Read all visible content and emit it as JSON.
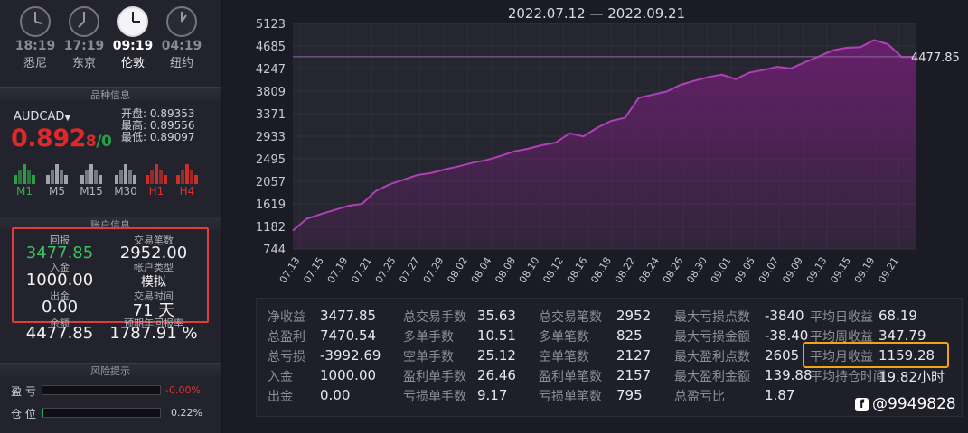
{
  "clocks": [
    {
      "time": "18:19",
      "city": "悉尼"
    },
    {
      "time": "17:19",
      "city": "东京"
    },
    {
      "time": "09:19",
      "city": "伦敦"
    },
    {
      "time": "04:19",
      "city": "纽约"
    }
  ],
  "product_section_title": "品种信息",
  "symbol": "AUDCAD",
  "price": {
    "main": "0.892",
    "sup": "8",
    "tail": "/0"
  },
  "ohl": {
    "open_label": "开盘:",
    "open": "0.89353",
    "high_label": "最高:",
    "high": "0.89556",
    "low_label": "最低:",
    "low": "0.89097"
  },
  "timeframes": [
    {
      "label": "M1",
      "color": "#2fae4a"
    },
    {
      "label": "M5",
      "color": "#b0b0b8"
    },
    {
      "label": "M15",
      "color": "#b0b0b8"
    },
    {
      "label": "M30",
      "color": "#b0b0b8"
    },
    {
      "label": "H1",
      "color": "#e0302a"
    },
    {
      "label": "H4",
      "color": "#e0302a"
    }
  ],
  "account_section_title": "账户信息",
  "account": {
    "return_label": "回报",
    "return_value": "3477.85",
    "trades_label": "交易笔数",
    "trades_value": "2952.00",
    "deposit_label": "入金",
    "deposit_value": "1000.00",
    "type_label": "帐户类型",
    "type_value": "模拟",
    "withdraw_label": "出金",
    "withdraw_value": "0.00",
    "days_label": "交易时间",
    "days_value": "71 天",
    "balance_label": "余额",
    "balance_value": "4477.85",
    "annual_label": "预期年回报率",
    "annual_value": "1787.91 %"
  },
  "risk_section_title": "风险提示",
  "risk": [
    {
      "label": "盈 亏",
      "value": "-0.00%",
      "color": "#e03030",
      "fraction": 0.0
    },
    {
      "label": "仓 位",
      "value": "0.22%",
      "color": "#d0d0d8",
      "fraction": 0.0022
    }
  ],
  "chart_data": {
    "type": "area",
    "title": "2022.07.12 — 2022.09.21",
    "y_ticks": [
      "5123",
      "4685",
      "4247",
      "3809",
      "3371",
      "2933",
      "2495",
      "2057",
      "1619",
      "1182",
      "744"
    ],
    "ylim": [
      744,
      5123
    ],
    "x_ticks": [
      "07.13",
      "07.15",
      "07.19",
      "07.21",
      "07.25",
      "07.27",
      "07.29",
      "08.02",
      "08.04",
      "08.08",
      "08.10",
      "08.12",
      "08.16",
      "08.18",
      "08.22",
      "08.24",
      "08.26",
      "08.30",
      "09.01",
      "09.05",
      "09.07",
      "09.09",
      "09.13",
      "09.15",
      "09.19",
      "09.21"
    ],
    "values": [
      1100,
      1330,
      1420,
      1500,
      1580,
      1620,
      1870,
      2000,
      2090,
      2180,
      2220,
      2290,
      2350,
      2420,
      2470,
      2550,
      2640,
      2690,
      2760,
      2810,
      2990,
      2930,
      3100,
      3230,
      3290,
      3680,
      3740,
      3800,
      3930,
      4010,
      4080,
      4130,
      4040,
      4170,
      4220,
      4280,
      4250,
      4370,
      4480,
      4600,
      4650,
      4660,
      4800,
      4720,
      4470,
      4477.85
    ],
    "last_label": "4477.85",
    "line_color": "#b040b8",
    "fill_color": "#6a1f6e"
  },
  "stats": [
    [
      {
        "k": "净收益",
        "v": "3477.85"
      },
      {
        "k": "总盈利",
        "v": "7470.54"
      },
      {
        "k": "总亏损",
        "v": "-3992.69"
      },
      {
        "k": "入金",
        "v": "1000.00"
      },
      {
        "k": "出金",
        "v": "0.00"
      }
    ],
    [
      {
        "k": "总交易手数",
        "v": "35.63"
      },
      {
        "k": "多单手数",
        "v": "10.51"
      },
      {
        "k": "空单手数",
        "v": "25.12"
      },
      {
        "k": "盈利单手数",
        "v": "26.46"
      },
      {
        "k": "亏损单手数",
        "v": "9.17"
      }
    ],
    [
      {
        "k": "总交易笔数",
        "v": "2952"
      },
      {
        "k": "多单笔数",
        "v": "825"
      },
      {
        "k": "空单笔数",
        "v": "2127"
      },
      {
        "k": "盈利单笔数",
        "v": "2157"
      },
      {
        "k": "亏损单笔数",
        "v": "795"
      }
    ],
    [
      {
        "k": "最大亏损点数",
        "v": "-3840"
      },
      {
        "k": "最大亏损金额",
        "v": "-38.40"
      },
      {
        "k": "最大盈利点数",
        "v": "2605"
      },
      {
        "k": "最大盈利金额",
        "v": "139.88"
      },
      {
        "k": "总盈亏比",
        "v": "1.87"
      }
    ],
    [
      {
        "k": "平均日收益",
        "v": "68.19"
      },
      {
        "k": "平均周收益",
        "v": "347.79"
      },
      {
        "k": "平均月收益",
        "v": "1159.28"
      },
      {
        "k": "平均持仓时间",
        "v": "19.82小时"
      }
    ]
  ],
  "watermark": "@9949828",
  "watermark_icon": "f"
}
